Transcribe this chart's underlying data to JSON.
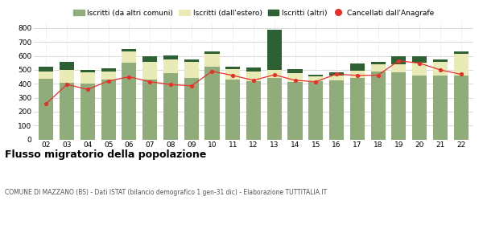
{
  "years": [
    "02",
    "03",
    "04",
    "05",
    "06",
    "07",
    "08",
    "09",
    "10",
    "11",
    "12",
    "13",
    "14",
    "15",
    "16",
    "17",
    "18",
    "19",
    "20",
    "21",
    "22"
  ],
  "iscritti_altri_comuni": [
    435,
    410,
    400,
    430,
    550,
    430,
    475,
    440,
    520,
    430,
    420,
    440,
    415,
    420,
    425,
    440,
    490,
    485,
    460,
    460,
    460
  ],
  "iscritti_estero": [
    55,
    90,
    80,
    60,
    85,
    130,
    100,
    120,
    95,
    75,
    70,
    60,
    60,
    35,
    35,
    55,
    50,
    55,
    90,
    95,
    155
  ],
  "iscritti_altri": [
    30,
    55,
    20,
    20,
    15,
    40,
    30,
    15,
    15,
    15,
    25,
    290,
    30,
    10,
    20,
    50,
    15,
    55,
    45,
    20,
    15
  ],
  "cancellati": [
    258,
    395,
    360,
    420,
    450,
    415,
    395,
    385,
    490,
    460,
    425,
    465,
    425,
    415,
    470,
    460,
    462,
    565,
    548,
    500,
    468
  ],
  "color_altri_comuni": "#8fac7a",
  "color_estero": "#e8ebb5",
  "color_altri": "#2d6033",
  "color_cancellati": "#e8302a",
  "ylim": [
    0,
    840
  ],
  "yticks": [
    0,
    100,
    200,
    300,
    400,
    500,
    600,
    700,
    800
  ],
  "title": "Flusso migratorio della popolazione",
  "subtitle": "COMUNE DI MAZZANO (BS) - Dati ISTAT (bilancio demografico 1 gen-31 dic) - Elaborazione TUTTITALIA.IT",
  "legend_labels": [
    "Iscritti (da altri comuni)",
    "Iscritti (dall'estero)",
    "Iscritti (altri)",
    "Cancellati dall'Anagrafe"
  ],
  "background_color": "#ffffff",
  "grid_color": "#cccccc"
}
